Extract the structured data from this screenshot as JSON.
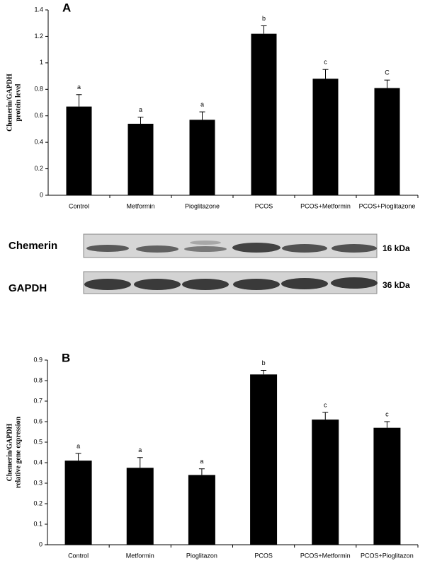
{
  "chart_data": [
    {
      "type": "bar",
      "panel": "A",
      "y_label": [
        "Chemerin/GAPDH",
        "protein level"
      ],
      "categories": [
        "Control",
        "Metformin",
        "Pioglitazone",
        "PCOS",
        "PCOS+Metformin",
        "PCOS+Pioglitazone"
      ],
      "values": [
        0.67,
        0.54,
        0.57,
        1.22,
        0.88,
        0.81
      ],
      "errors": [
        0.09,
        0.05,
        0.06,
        0.06,
        0.07,
        0.06
      ],
      "annotations": [
        "a",
        "a",
        "a",
        "b",
        "c",
        "C"
      ],
      "color": "#000000",
      "ylim": [
        0,
        1.4
      ],
      "yticks": [
        0,
        0.2,
        0.4,
        0.6,
        0.8,
        1,
        1.2,
        1.4
      ],
      "grid": false
    },
    {
      "type": "bar",
      "panel": "B",
      "y_label": [
        "Chemerin/GAPDH",
        "relative gene expression"
      ],
      "categories": [
        "Control",
        "Metformin",
        "Pioglitazon",
        "PCOS",
        "PCOS+Metformin",
        "PCOS+Pioglitazon"
      ],
      "values": [
        0.41,
        0.375,
        0.34,
        0.83,
        0.61,
        0.57
      ],
      "errors": [
        0.035,
        0.05,
        0.03,
        0.02,
        0.035,
        0.03
      ],
      "annotations": [
        "a",
        "a",
        "a",
        "b",
        "c",
        "c"
      ],
      "color": "#000000",
      "ylim": [
        0,
        0.9
      ],
      "yticks": [
        0,
        0.1,
        0.2,
        0.3,
        0.4,
        0.5,
        0.6,
        0.7,
        0.8,
        0.9
      ],
      "grid": false
    }
  ],
  "blot": {
    "proteins": [
      "Chemerin",
      "GAPDH"
    ],
    "sizes": [
      "16 kDa",
      "36 kDa"
    ]
  }
}
